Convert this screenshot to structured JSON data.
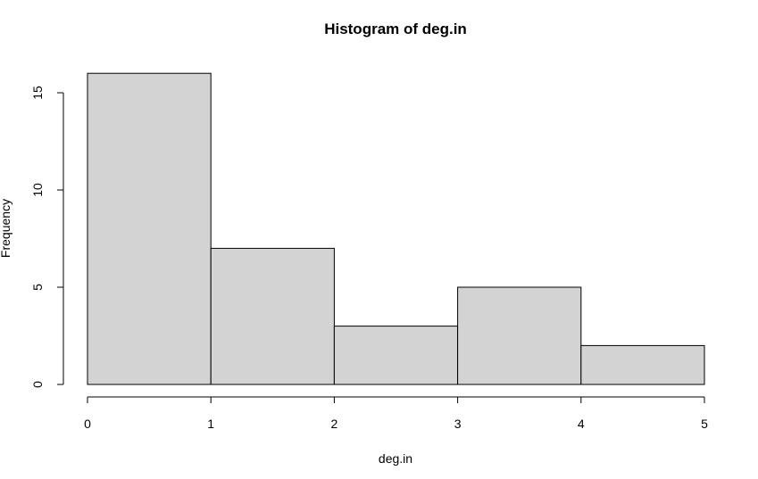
{
  "chart_data": {
    "type": "bar",
    "title": "Histogram of deg.in",
    "xlabel": "deg.in",
    "ylabel": "Frequency",
    "bins": [
      {
        "from": 0,
        "to": 1,
        "count": 16
      },
      {
        "from": 1,
        "to": 2,
        "count": 7
      },
      {
        "from": 2,
        "to": 3,
        "count": 3
      },
      {
        "from": 3,
        "to": 4,
        "count": 5
      },
      {
        "from": 4,
        "to": 5,
        "count": 2
      }
    ],
    "xlim": [
      0,
      5
    ],
    "ylim": [
      0,
      16
    ],
    "x_ticks": [
      "0",
      "1",
      "2",
      "3",
      "4",
      "5"
    ],
    "y_ticks": [
      "0",
      "5",
      "10",
      "15"
    ],
    "grid": false,
    "colors": {
      "bar_fill": "#d3d3d3",
      "bar_stroke": "#000000",
      "axis": "#000000"
    }
  }
}
